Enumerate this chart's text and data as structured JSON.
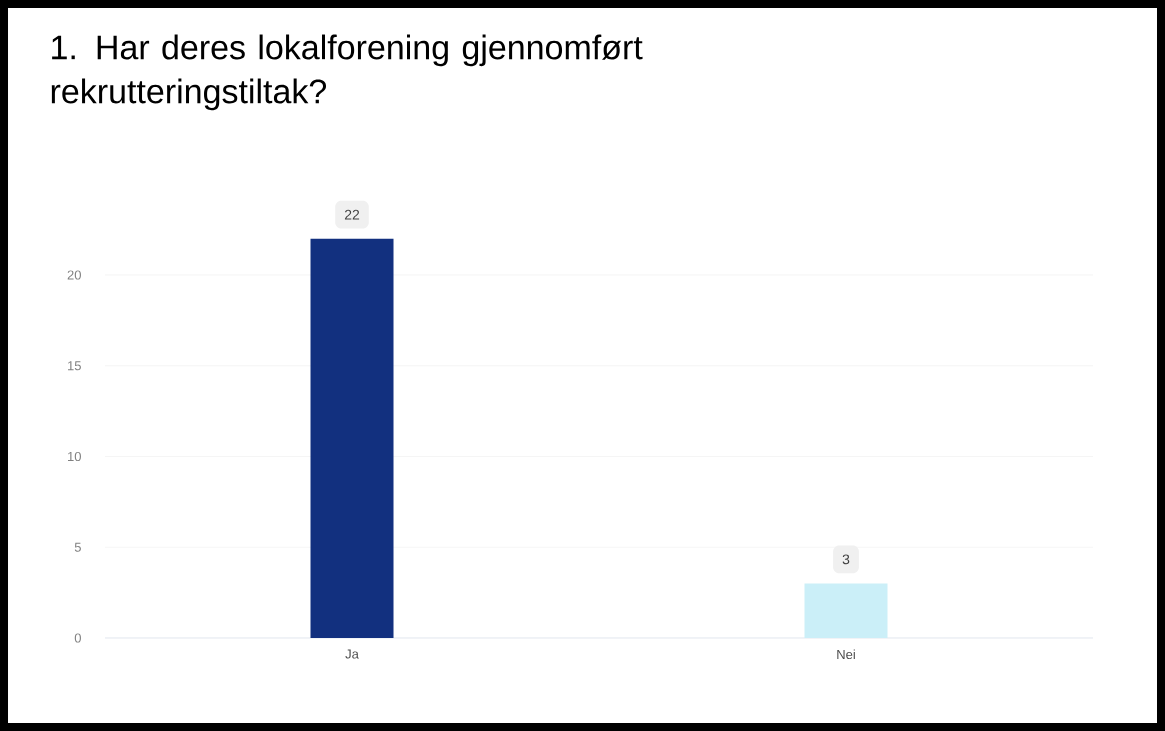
{
  "chart_data": {
    "type": "bar",
    "title": "1. Har deres lokalforening gjennomført rekrutteringstiltak?",
    "categories": [
      "Ja",
      "Nei"
    ],
    "values": [
      22,
      3
    ],
    "colors": [
      "#12307f",
      "#cbeff8"
    ],
    "ylim": [
      0,
      22
    ],
    "yticks": [
      0,
      5,
      10,
      15,
      20
    ],
    "grid": "y",
    "data_labels": true
  }
}
